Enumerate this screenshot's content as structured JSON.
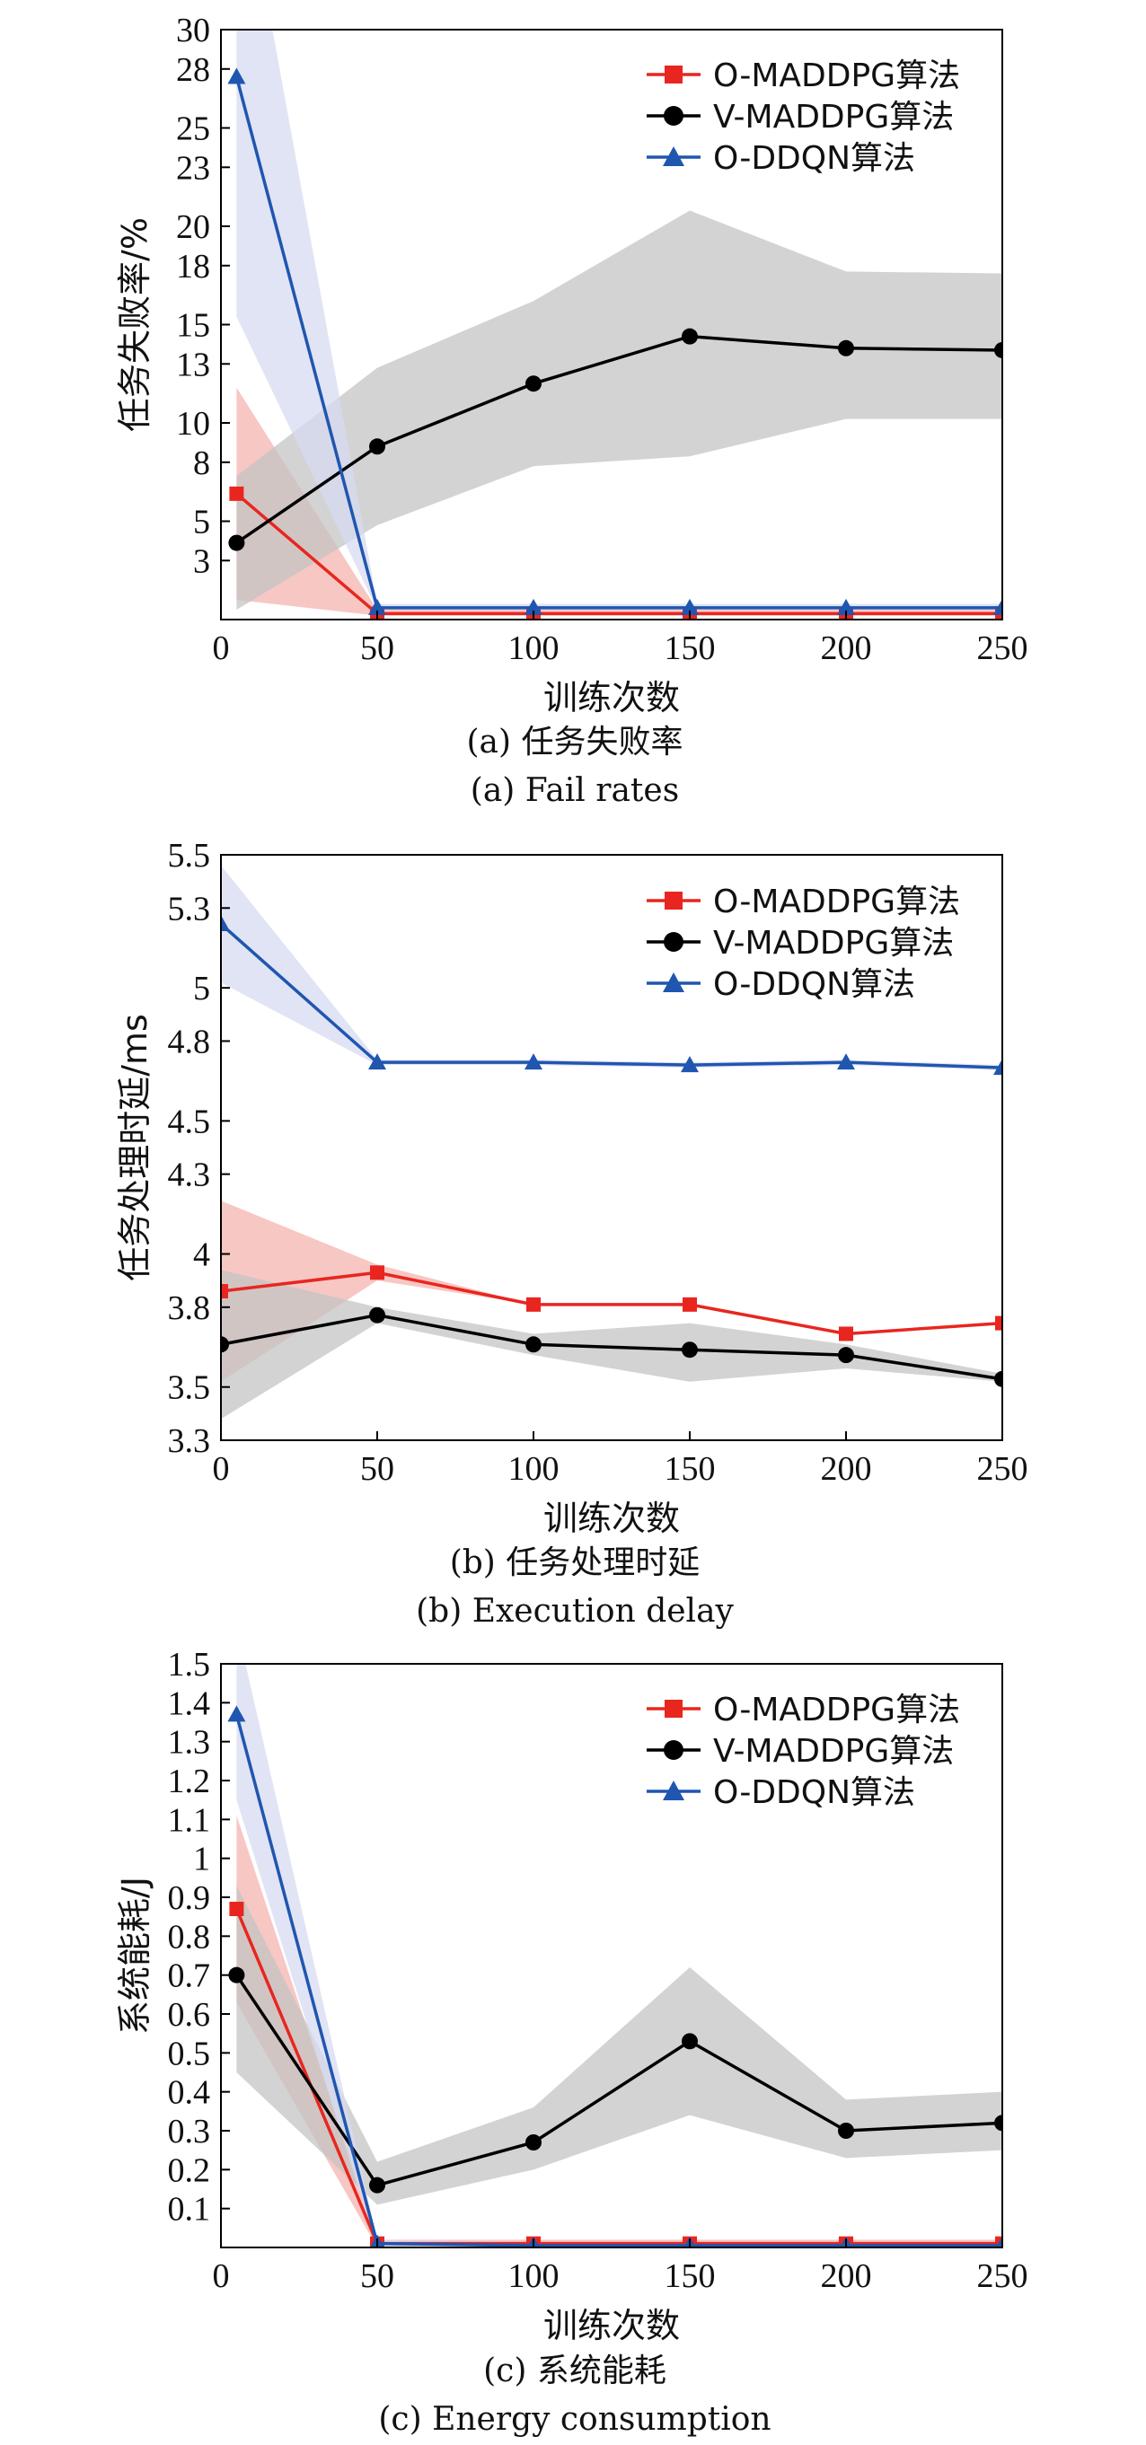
{
  "chart_data": [
    {
      "type": "line",
      "x": [
        5,
        50,
        100,
        150,
        200,
        250
      ],
      "xticks": [
        0,
        50,
        100,
        150,
        200,
        250
      ],
      "xlim": [
        0,
        250
      ],
      "ylim": [
        0,
        30
      ],
      "yticks": [
        3,
        5,
        8,
        10,
        13,
        15,
        18,
        20,
        23,
        25,
        28,
        30
      ],
      "xlabel": "训练次数",
      "ylabel": "任务失败率/%",
      "caption_cn": "(a) 任务失败率",
      "caption_en": "(a) Fail rates",
      "legend_position": "top-right",
      "grid": false,
      "series": [
        {
          "name": "O-MADDPG算法",
          "marker": "square",
          "color": "#e8261f",
          "values": [
            6.4,
            0.3,
            0.3,
            0.3,
            0.3,
            0.3
          ],
          "band_low": [
            1.0,
            0.2,
            0.2,
            0.2,
            0.2,
            0.2
          ],
          "band_high": [
            11.8,
            0.5,
            0.5,
            0.5,
            0.5,
            0.5
          ],
          "band_color": "#f4b4b0"
        },
        {
          "name": "V-MADDPG算法",
          "marker": "circle",
          "color": "#000000",
          "values": [
            3.9,
            8.8,
            12.0,
            14.4,
            13.8,
            13.7
          ],
          "band_low": [
            0.5,
            4.8,
            7.8,
            8.3,
            10.2,
            10.2
          ],
          "band_high": [
            7.3,
            12.8,
            16.2,
            20.8,
            17.7,
            17.6
          ],
          "band_color": "#c4c4c4"
        },
        {
          "name": "O-DDQN算法",
          "marker": "triangle",
          "color": "#1f56b0",
          "values": [
            27.6,
            0.6,
            0.6,
            0.6,
            0.6,
            0.6
          ],
          "band_low": [
            15.4,
            0.5,
            0.5,
            0.5,
            0.5,
            0.5
          ],
          "band_high": [
            40.0,
            0.8,
            0.8,
            0.8,
            0.8,
            0.8
          ],
          "band_color": "#d7dbf0"
        }
      ]
    },
    {
      "type": "line",
      "x": [
        0,
        50,
        100,
        150,
        200,
        250
      ],
      "xticks": [
        0,
        50,
        100,
        150,
        200,
        250
      ],
      "xlim": [
        0,
        250
      ],
      "ylim": [
        3.3,
        5.5
      ],
      "yticks": [
        3.3,
        3.5,
        3.8,
        4.0,
        4.3,
        4.5,
        4.8,
        5.0,
        5.3,
        5.5
      ],
      "xlabel": "训练次数",
      "ylabel": "任务处理时延/ms",
      "caption_cn": "(b) 任务处理时延",
      "caption_en": "(b) Execution delay",
      "legend_position": "top-right",
      "grid": false,
      "series": [
        {
          "name": "O-MADDPG算法",
          "marker": "square",
          "color": "#e8261f",
          "values": [
            3.86,
            3.93,
            3.81,
            3.81,
            3.7,
            3.74
          ],
          "band_low": [
            3.52,
            3.9,
            3.81,
            3.81,
            3.7,
            3.74
          ],
          "band_high": [
            4.2,
            3.96,
            3.81,
            3.81,
            3.7,
            3.74
          ],
          "band_color": "#f4b4b0"
        },
        {
          "name": "V-MADDPG算法",
          "marker": "circle",
          "color": "#000000",
          "values": [
            3.66,
            3.77,
            3.66,
            3.64,
            3.62,
            3.53
          ],
          "band_low": [
            3.38,
            3.74,
            3.62,
            3.52,
            3.57,
            3.52
          ],
          "band_high": [
            3.94,
            3.8,
            3.7,
            3.74,
            3.66,
            3.55
          ],
          "band_color": "#c4c4c4"
        },
        {
          "name": "O-DDQN算法",
          "marker": "triangle",
          "color": "#1f56b0",
          "values": [
            5.24,
            4.72,
            4.72,
            4.71,
            4.72,
            4.7
          ],
          "band_low": [
            5.02,
            4.71,
            4.71,
            4.7,
            4.71,
            4.69
          ],
          "band_high": [
            5.46,
            4.73,
            4.73,
            4.72,
            4.73,
            4.71
          ],
          "band_color": "#d7dbf0"
        }
      ]
    },
    {
      "type": "line",
      "x": [
        5,
        50,
        100,
        150,
        200,
        250
      ],
      "xticks": [
        0,
        50,
        100,
        150,
        200,
        250
      ],
      "xlim": [
        0,
        250
      ],
      "ylim": [
        0,
        1.5
      ],
      "yticks": [
        0.1,
        0.2,
        0.3,
        0.4,
        0.5,
        0.6,
        0.7,
        0.8,
        0.9,
        1.0,
        1.1,
        1.2,
        1.3,
        1.4,
        1.5
      ],
      "xlabel": "训练次数",
      "ylabel": "系统能耗/J",
      "caption_cn": "(c) 系统能耗",
      "caption_en": "(c) Energy consumption",
      "legend_position": "top-right",
      "grid": false,
      "series": [
        {
          "name": "O-MADDPG算法",
          "marker": "square",
          "color": "#e8261f",
          "values": [
            0.87,
            0.01,
            0.01,
            0.01,
            0.01,
            0.01
          ],
          "band_low": [
            0.63,
            0.0,
            0.0,
            0.0,
            0.0,
            0.0
          ],
          "band_high": [
            1.11,
            0.02,
            0.02,
            0.02,
            0.02,
            0.02
          ],
          "band_color": "#f4b4b0"
        },
        {
          "name": "V-MADDPG算法",
          "marker": "circle",
          "color": "#000000",
          "values": [
            0.7,
            0.16,
            0.27,
            0.53,
            0.3,
            0.32
          ],
          "band_low": [
            0.45,
            0.11,
            0.2,
            0.34,
            0.23,
            0.25
          ],
          "band_high": [
            0.93,
            0.22,
            0.36,
            0.72,
            0.38,
            0.4
          ],
          "band_color": "#c4c4c4"
        },
        {
          "name": "O-DDQN算法",
          "marker": "triangle",
          "color": "#1f56b0",
          "values": [
            1.37,
            0.01,
            0.005,
            0.005,
            0.005,
            0.005
          ],
          "band_low": [
            1.15,
            0.0,
            0.0,
            0.0,
            0.0,
            0.0
          ],
          "band_high": [
            1.6,
            0.02,
            0.01,
            0.01,
            0.01,
            0.01
          ],
          "band_color": "#d7dbf0"
        }
      ]
    }
  ]
}
